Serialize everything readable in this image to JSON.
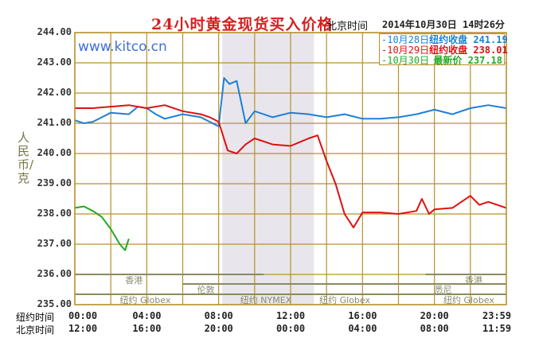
{
  "header": {
    "title": "24小时黄金现货买入价格",
    "timezone_label": "北京时间",
    "timestamp": "2014年10月30日 14时26分",
    "watermark": "www.kitco.cn"
  },
  "legend": [
    {
      "date": "-10月28日",
      "label": "纽约收盘",
      "value": "241.19",
      "color": "#1e7fd8"
    },
    {
      "date": "-10月29日",
      "label": "纽约收盘",
      "value": "238.01",
      "color": "#dd1111"
    },
    {
      "date": "-10月30日",
      "label": "最新价",
      "value": "237.18",
      "color": "#22aa22"
    }
  ],
  "y_axis": {
    "label": "人民币/克",
    "ticks": [
      "244.00",
      "243.00",
      "242.00",
      "241.00",
      "240.00",
      "239.00",
      "238.00",
      "237.00",
      "236.00",
      "235.00"
    ]
  },
  "x_axis": {
    "row1_label": "纽约时间",
    "row1_ticks": [
      "00:00",
      "04:00",
      "08:00",
      "12:00",
      "16:00",
      "20:00",
      "23:59"
    ],
    "row2_label": "北京时间",
    "row2_ticks": [
      "12:00",
      "16:00",
      "20:00",
      "00:00",
      "04:00",
      "08:00",
      "11:59"
    ]
  },
  "markets": {
    "hongkong": "香港",
    "london": "伦敦",
    "sydney": "悉尼",
    "ny_globex": "纽约 Globex",
    "ny_nymex": "纽约 NYMEX"
  },
  "colors": {
    "grid": "#b8902a",
    "shade": "#e8e6ec",
    "blue": "#1e7fd8",
    "red": "#dd1111",
    "green": "#22aa22"
  },
  "chart_data": {
    "type": "line",
    "title": "24小时黄金现货买入价格",
    "xlabel": "纽约时间 / 北京时间",
    "ylabel": "人民币/克",
    "ylim": [
      235,
      244
    ],
    "x_ticks_ny": [
      "00:00",
      "04:00",
      "08:00",
      "12:00",
      "16:00",
      "20:00",
      "23:59"
    ],
    "x_hours": [
      0,
      1,
      2,
      3,
      4,
      5,
      6,
      7,
      8,
      9,
      10,
      11,
      12,
      13,
      14,
      15,
      16,
      17,
      18,
      19,
      20,
      21,
      22,
      23,
      24
    ],
    "shaded_region_hours": [
      8.2,
      13.3
    ],
    "series": [
      {
        "name": "10月28日 纽约收盘 241.19",
        "color": "#1e7fd8",
        "x": [
          0,
          0.5,
          1,
          2,
          3,
          3.5,
          4,
          4.5,
          5,
          6,
          7,
          7.5,
          8,
          8.3,
          8.6,
          9,
          9.5,
          10,
          10.5,
          11,
          12,
          13,
          14,
          15,
          16,
          17,
          18,
          19,
          20,
          21,
          22,
          23,
          24
        ],
        "y": [
          241.1,
          241.0,
          241.05,
          241.35,
          241.3,
          241.55,
          241.5,
          241.3,
          241.15,
          241.3,
          241.2,
          241.05,
          240.9,
          242.5,
          242.3,
          242.4,
          241.0,
          241.4,
          241.3,
          241.2,
          241.35,
          241.3,
          241.2,
          241.3,
          241.15,
          241.15,
          241.2,
          241.3,
          241.45,
          241.3,
          241.5,
          241.6,
          241.5
        ]
      },
      {
        "name": "10月29日 纽约收盘 238.01",
        "color": "#dd1111",
        "x": [
          0,
          1,
          2,
          3,
          4,
          5,
          6,
          7,
          7.5,
          8,
          8.5,
          9,
          9.5,
          10,
          11,
          12,
          13,
          13.5,
          14,
          14.5,
          15,
          15.5,
          16,
          17,
          18,
          19,
          19.3,
          19.7,
          20,
          21,
          22,
          22.5,
          23,
          24
        ],
        "y": [
          241.5,
          241.5,
          241.55,
          241.6,
          241.5,
          241.6,
          241.4,
          241.3,
          241.2,
          241.05,
          240.1,
          240.0,
          240.3,
          240.5,
          240.3,
          240.25,
          240.5,
          240.6,
          239.75,
          239.0,
          238.0,
          237.55,
          238.05,
          238.05,
          238.0,
          238.1,
          238.5,
          238.0,
          238.15,
          238.2,
          238.6,
          238.3,
          238.4,
          238.2
        ]
      },
      {
        "name": "10月30日 最新价 237.18",
        "color": "#22aa22",
        "x": [
          0,
          0.5,
          1,
          1.5,
          2,
          2.5,
          2.8,
          3.0
        ],
        "y": [
          238.2,
          238.25,
          238.1,
          237.9,
          237.5,
          237.0,
          236.8,
          237.18
        ]
      }
    ]
  }
}
